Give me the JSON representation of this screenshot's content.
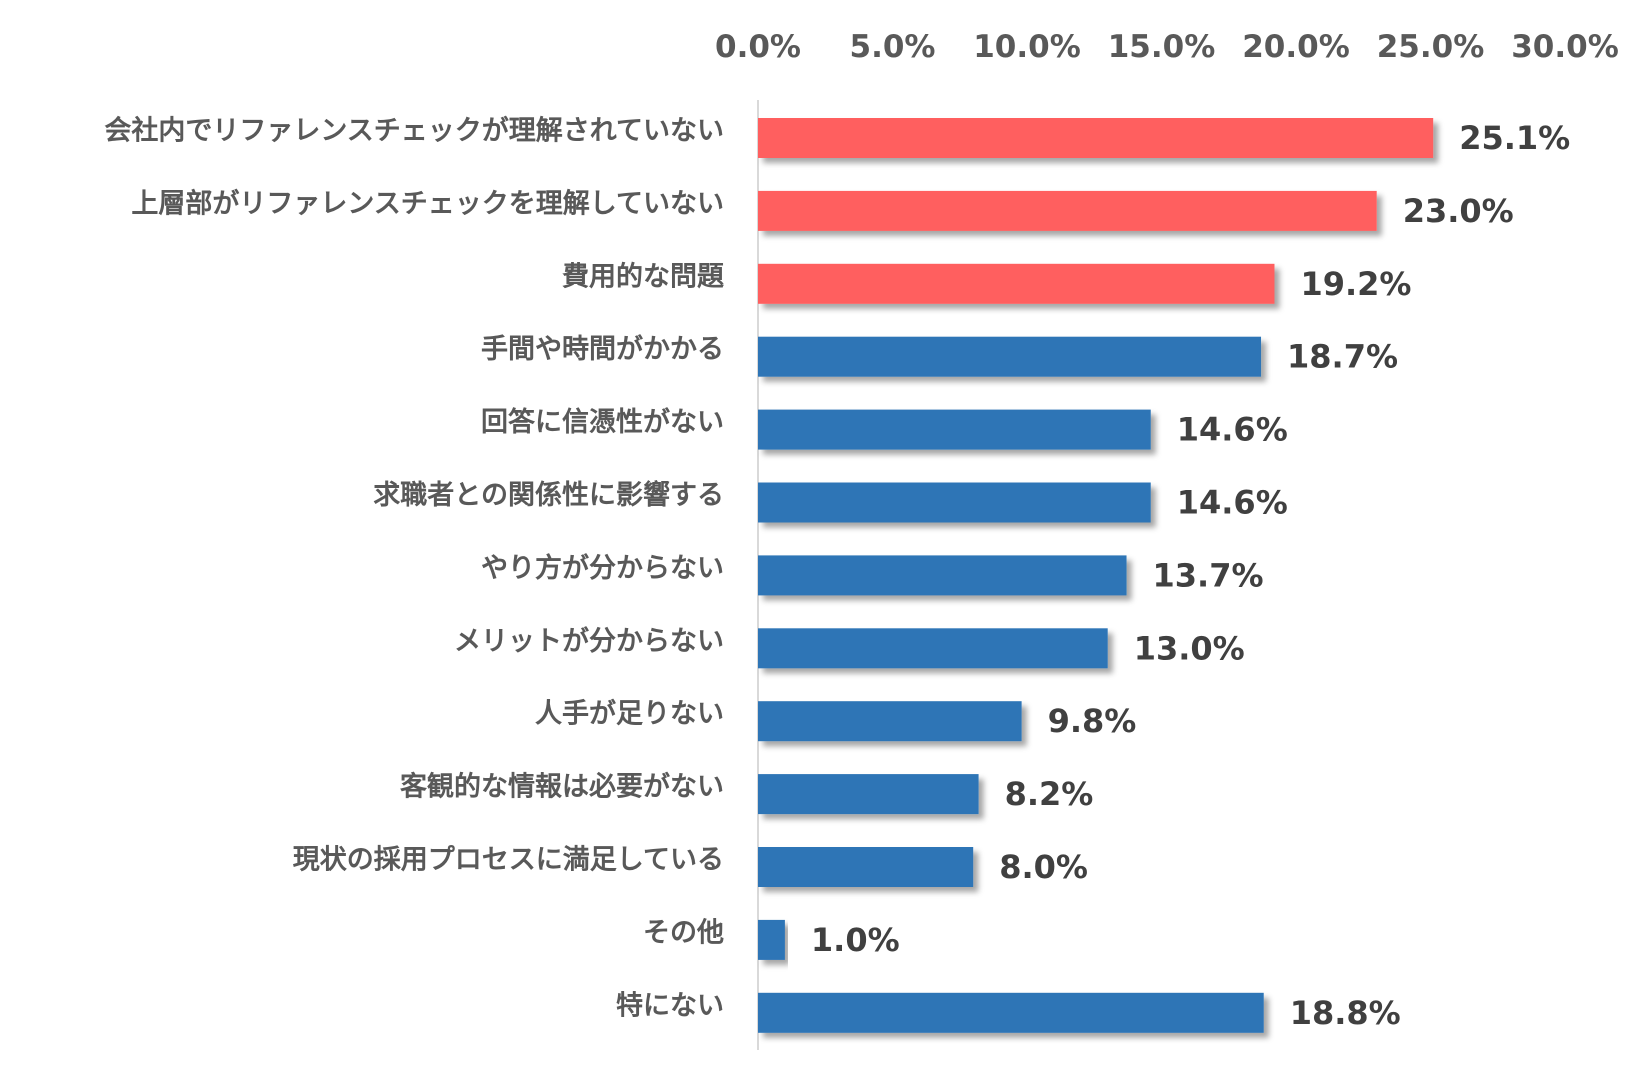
{
  "chart_data": {
    "type": "bar",
    "orientation": "horizontal",
    "categories": [
      "会社内でリファレンスチェックが理解されていない",
      "上層部がリファレンスチェックを理解していない",
      "費用的な問題",
      "手間や時間がかかる",
      "回答に信憑性がない",
      "求職者との関係性に影響する",
      "やり方が分からない",
      "メリットが分からない",
      "人手が足りない",
      "客観的な情報は必要がない",
      "現状の採用プロセスに満足している",
      "その他",
      "特にない"
    ],
    "values": [
      25.1,
      23.0,
      19.2,
      18.7,
      14.6,
      14.6,
      13.7,
      13.0,
      9.8,
      8.2,
      8.0,
      1.0,
      18.8
    ],
    "value_labels": [
      "25.1%",
      "23.0%",
      "19.2%",
      "18.7%",
      "14.6%",
      "14.6%",
      "13.7%",
      "13.0%",
      "9.8%",
      "8.2%",
      "8.0%",
      "1.0%",
      "18.8%"
    ],
    "highlight_count": 3,
    "xlim": [
      0,
      30
    ],
    "x_ticks": [
      0,
      5,
      10,
      15,
      20,
      25,
      30
    ],
    "x_tick_labels": [
      "0.0%",
      "5.0%",
      "10.0%",
      "15.0%",
      "20.0%",
      "25.0%",
      "30.0%"
    ],
    "axis_position": "top",
    "grid": false,
    "legend": "none",
    "colors": {
      "highlight": "#FF5F5F",
      "default": "#2E75B6",
      "axis": "#D9D9D9",
      "tick_text": "#595959",
      "category_text": "#595959",
      "value_text": "#404040"
    }
  }
}
